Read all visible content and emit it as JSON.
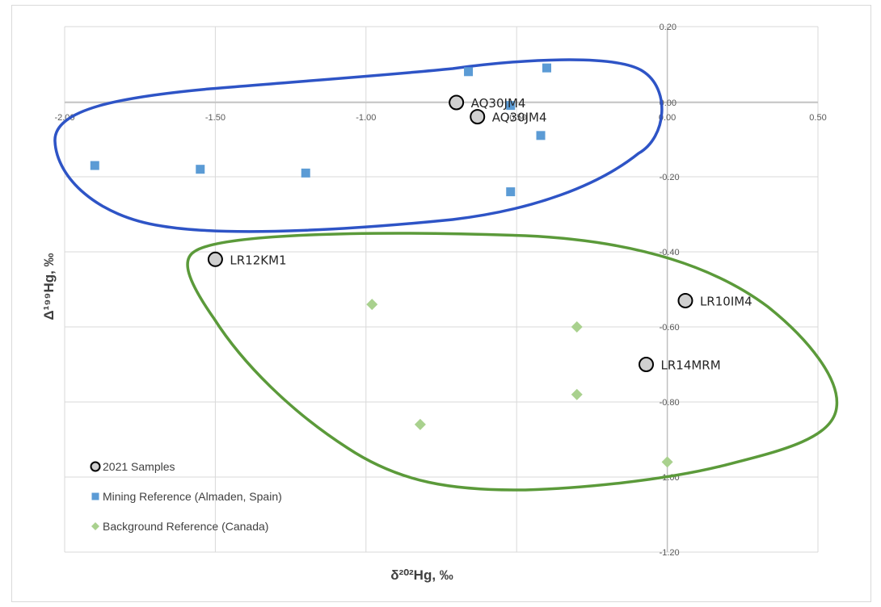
{
  "chart_data": {
    "type": "scatter",
    "xlabel": "δ²⁰²Hg, ‰",
    "ylabel": "Δ¹⁹⁹Hg, ‰",
    "xlim": [
      -2.0,
      0.5
    ],
    "ylim": [
      -1.2,
      0.2
    ],
    "x_ticks": [
      -2.0,
      -1.5,
      -1.0,
      -0.5,
      0.0,
      0.5
    ],
    "x_tick_labels": [
      "-2.00",
      "-1.50",
      "-1.00",
      "-0.50",
      "0.00",
      "0.50"
    ],
    "y_ticks": [
      0.2,
      0.0,
      -0.2,
      -0.4,
      -0.6,
      -0.8,
      -1.0,
      -1.2
    ],
    "y_tick_labels": [
      "0.20",
      "0.00",
      "0.20",
      "0.40",
      "0.60",
      "0.80",
      "1.00",
      "1.20"
    ],
    "y_tick_prefix": [
      "",
      "",
      "-",
      "-",
      "-",
      "-",
      "-",
      "-"
    ],
    "series": [
      {
        "name": "2021 Samples",
        "marker": "circle",
        "color": "#d0d0d0",
        "stroke": "#000000",
        "points": [
          {
            "x": -0.7,
            "y": 0.0,
            "label": "AQ30JM4"
          },
          {
            "x": -0.63,
            "y": -0.04,
            "label": "AQ30JM4"
          },
          {
            "x": -1.5,
            "y": -0.42,
            "label": "LR12KM1"
          },
          {
            "x": 0.06,
            "y": -0.53,
            "label": "LR10IM4"
          },
          {
            "x": -0.07,
            "y": -0.7,
            "label": "LR14MRM"
          }
        ]
      },
      {
        "name": "Mining Reference (Almaden, Spain)",
        "marker": "square",
        "color": "#5b9bd5",
        "points": [
          {
            "x": -1.9,
            "y": -0.17
          },
          {
            "x": -1.55,
            "y": -0.18
          },
          {
            "x": -1.2,
            "y": -0.19
          },
          {
            "x": -0.66,
            "y": 0.08
          },
          {
            "x": -0.4,
            "y": 0.09
          },
          {
            "x": -0.52,
            "y": -0.01
          },
          {
            "x": -0.42,
            "y": -0.09
          },
          {
            "x": -0.52,
            "y": -0.24
          }
        ]
      },
      {
        "name": "Background Reference (Canada)",
        "marker": "diamond",
        "color": "#a9d18e",
        "points": [
          {
            "x": -0.98,
            "y": -0.54
          },
          {
            "x": -0.82,
            "y": -0.86
          },
          {
            "x": -0.3,
            "y": -0.6
          },
          {
            "x": -0.3,
            "y": -0.78
          },
          {
            "x": 0.0,
            "y": -0.96
          }
        ]
      }
    ],
    "enclosures": [
      {
        "name": "mining-enclosure",
        "color": "#2e54c6"
      },
      {
        "name": "background-enclosure",
        "color": "#5b9a3a"
      }
    ],
    "legend_position": "bottom-left",
    "grid": "vertical-and-horizontal"
  }
}
